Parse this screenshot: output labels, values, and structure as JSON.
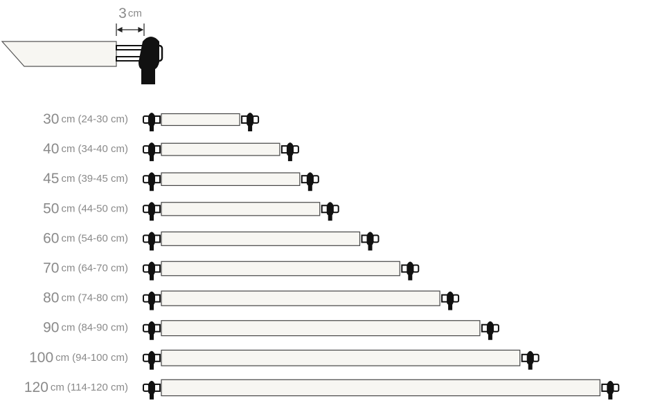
{
  "header": {
    "value": "3",
    "unit": "cm"
  },
  "rows": [
    {
      "size": 30,
      "unit": "cm",
      "range": "(24-30 cm)"
    },
    {
      "size": 40,
      "unit": "cm",
      "range": "(34-40 cm)"
    },
    {
      "size": 45,
      "unit": "cm",
      "range": "(39-45 cm)"
    },
    {
      "size": 50,
      "unit": "cm",
      "range": "(44-50 cm)"
    },
    {
      "size": 60,
      "unit": "cm",
      "range": "(54-60 cm)"
    },
    {
      "size": 70,
      "unit": "cm",
      "range": "(64-70 cm)"
    },
    {
      "size": 80,
      "unit": "cm",
      "range": "(74-80 cm)"
    },
    {
      "size": 90,
      "unit": "cm",
      "range": "(84-90 cm)"
    },
    {
      "size": 100,
      "unit": "cm",
      "range": "(94-100 cm)"
    },
    {
      "size": 120,
      "unit": "cm",
      "range": "(114-120 cm)"
    }
  ]
}
